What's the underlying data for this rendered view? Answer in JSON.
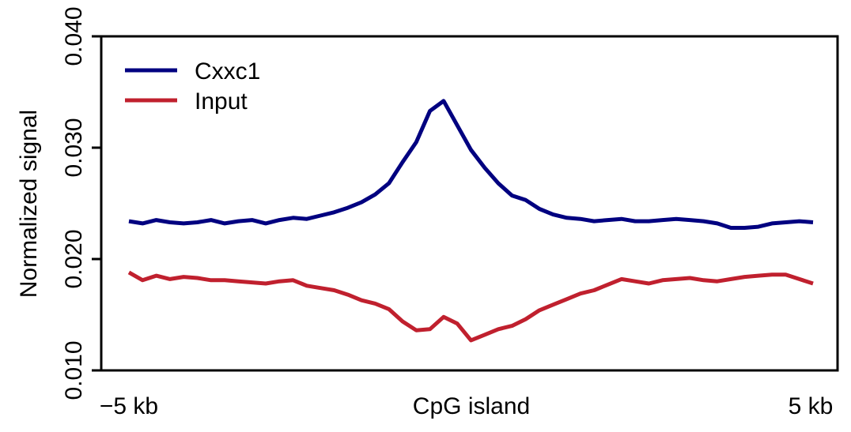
{
  "chart_data": {
    "type": "line",
    "title": "",
    "xlabel": "",
    "ylabel": "Normalized signal",
    "ylim": [
      0.01,
      0.04
    ],
    "xlim": [
      -5,
      5
    ],
    "x_tick_labels": [
      "−5 kb",
      "CpG island",
      "5 kb"
    ],
    "y_ticks": [
      "0.010",
      "0.020",
      "0.030",
      "0.040"
    ],
    "legend_position": "top-left",
    "grid": false,
    "series": [
      {
        "name": "Cxxc1",
        "color": "#000080",
        "x": [
          -5.0,
          -4.8,
          -4.6,
          -4.4,
          -4.2,
          -4.0,
          -3.8,
          -3.6,
          -3.4,
          -3.2,
          -3.0,
          -2.8,
          -2.6,
          -2.4,
          -2.2,
          -2.0,
          -1.8,
          -1.6,
          -1.4,
          -1.2,
          -1.0,
          -0.8,
          -0.6,
          -0.4,
          -0.2,
          0.0,
          0.2,
          0.4,
          0.6,
          0.8,
          1.0,
          1.2,
          1.4,
          1.6,
          1.8,
          2.0,
          2.2,
          2.4,
          2.6,
          2.8,
          3.0,
          3.2,
          3.4,
          3.6,
          3.8,
          4.0,
          4.2,
          4.4,
          4.6,
          4.8,
          5.0
        ],
        "values": [
          0.0234,
          0.0232,
          0.0235,
          0.0233,
          0.0232,
          0.0233,
          0.0235,
          0.0232,
          0.0234,
          0.0235,
          0.0232,
          0.0235,
          0.0237,
          0.0236,
          0.0239,
          0.0242,
          0.0246,
          0.0251,
          0.0258,
          0.0268,
          0.0287,
          0.0305,
          0.0333,
          0.0342,
          0.032,
          0.0298,
          0.0282,
          0.0268,
          0.0257,
          0.0253,
          0.0245,
          0.024,
          0.0237,
          0.0236,
          0.0234,
          0.0235,
          0.0236,
          0.0234,
          0.0234,
          0.0235,
          0.0236,
          0.0235,
          0.0234,
          0.0232,
          0.0228,
          0.0228,
          0.0229,
          0.0232,
          0.0233,
          0.0234,
          0.0233
        ]
      },
      {
        "name": "Input",
        "color": "#c0202e",
        "x": [
          -5.0,
          -4.8,
          -4.6,
          -4.4,
          -4.2,
          -4.0,
          -3.8,
          -3.6,
          -3.4,
          -3.2,
          -3.0,
          -2.8,
          -2.6,
          -2.4,
          -2.2,
          -2.0,
          -1.8,
          -1.6,
          -1.4,
          -1.2,
          -1.0,
          -0.8,
          -0.6,
          -0.4,
          -0.2,
          0.0,
          0.2,
          0.4,
          0.6,
          0.8,
          1.0,
          1.2,
          1.4,
          1.6,
          1.8,
          2.0,
          2.2,
          2.4,
          2.6,
          2.8,
          3.0,
          3.2,
          3.4,
          3.6,
          3.8,
          4.0,
          4.2,
          4.4,
          4.6,
          4.8,
          5.0
        ],
        "values": [
          0.0188,
          0.0181,
          0.0185,
          0.0182,
          0.0184,
          0.0183,
          0.0181,
          0.0181,
          0.018,
          0.0179,
          0.0178,
          0.018,
          0.0181,
          0.0176,
          0.0174,
          0.0172,
          0.0168,
          0.0163,
          0.016,
          0.0155,
          0.0144,
          0.0136,
          0.0137,
          0.0148,
          0.0142,
          0.0127,
          0.0132,
          0.0137,
          0.014,
          0.0146,
          0.0154,
          0.0159,
          0.0164,
          0.0169,
          0.0172,
          0.0177,
          0.0182,
          0.018,
          0.0178,
          0.0181,
          0.0182,
          0.0183,
          0.0181,
          0.018,
          0.0182,
          0.0184,
          0.0185,
          0.0186,
          0.0186,
          0.0182,
          0.0178
        ]
      }
    ]
  }
}
